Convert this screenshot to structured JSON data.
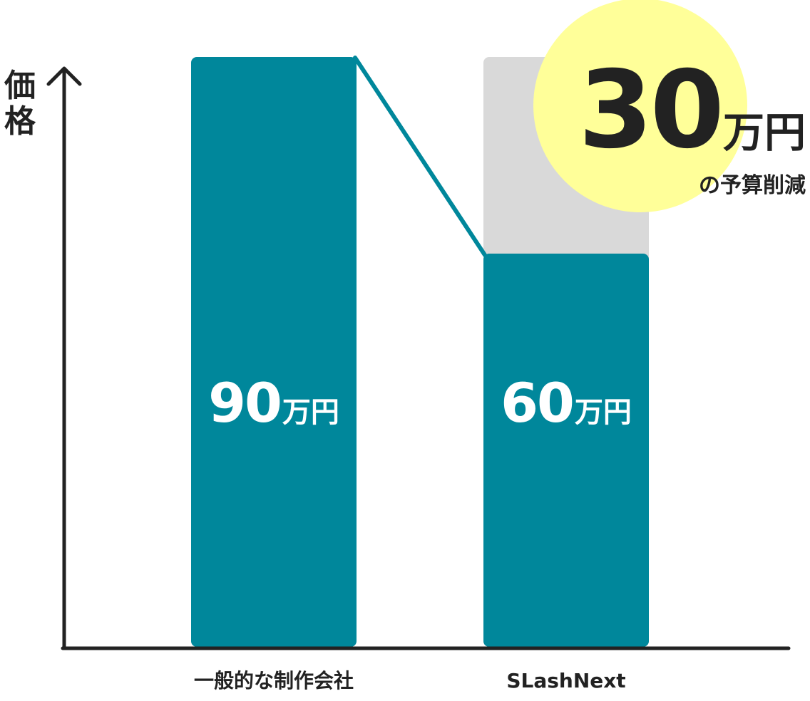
{
  "chart_data": {
    "type": "bar",
    "ylabel": "価格",
    "categories": [
      "一般的な制作会社",
      "SLashNext"
    ],
    "values": [
      90,
      60
    ],
    "unit": "万円",
    "value_labels": [
      {
        "number": "90",
        "unit": "万円"
      },
      {
        "number": "60",
        "unit": "万円"
      }
    ],
    "ylim": [
      0,
      90
    ],
    "ghost_bar": {
      "category": "SLashNext",
      "value": 90
    },
    "connector": {
      "from_category": "一般的な制作会社",
      "to_category": "SLashNext"
    },
    "annotation": {
      "amount": "30",
      "unit": "万円",
      "caption": "の予算削減"
    },
    "grid": false,
    "legend": "none"
  },
  "colors": {
    "bar": "#00879b",
    "ghost_bar": "#d9d9d9",
    "axis": "#222222",
    "badge": "#ffff99",
    "text": "#222222",
    "bar_text": "#ffffff"
  }
}
